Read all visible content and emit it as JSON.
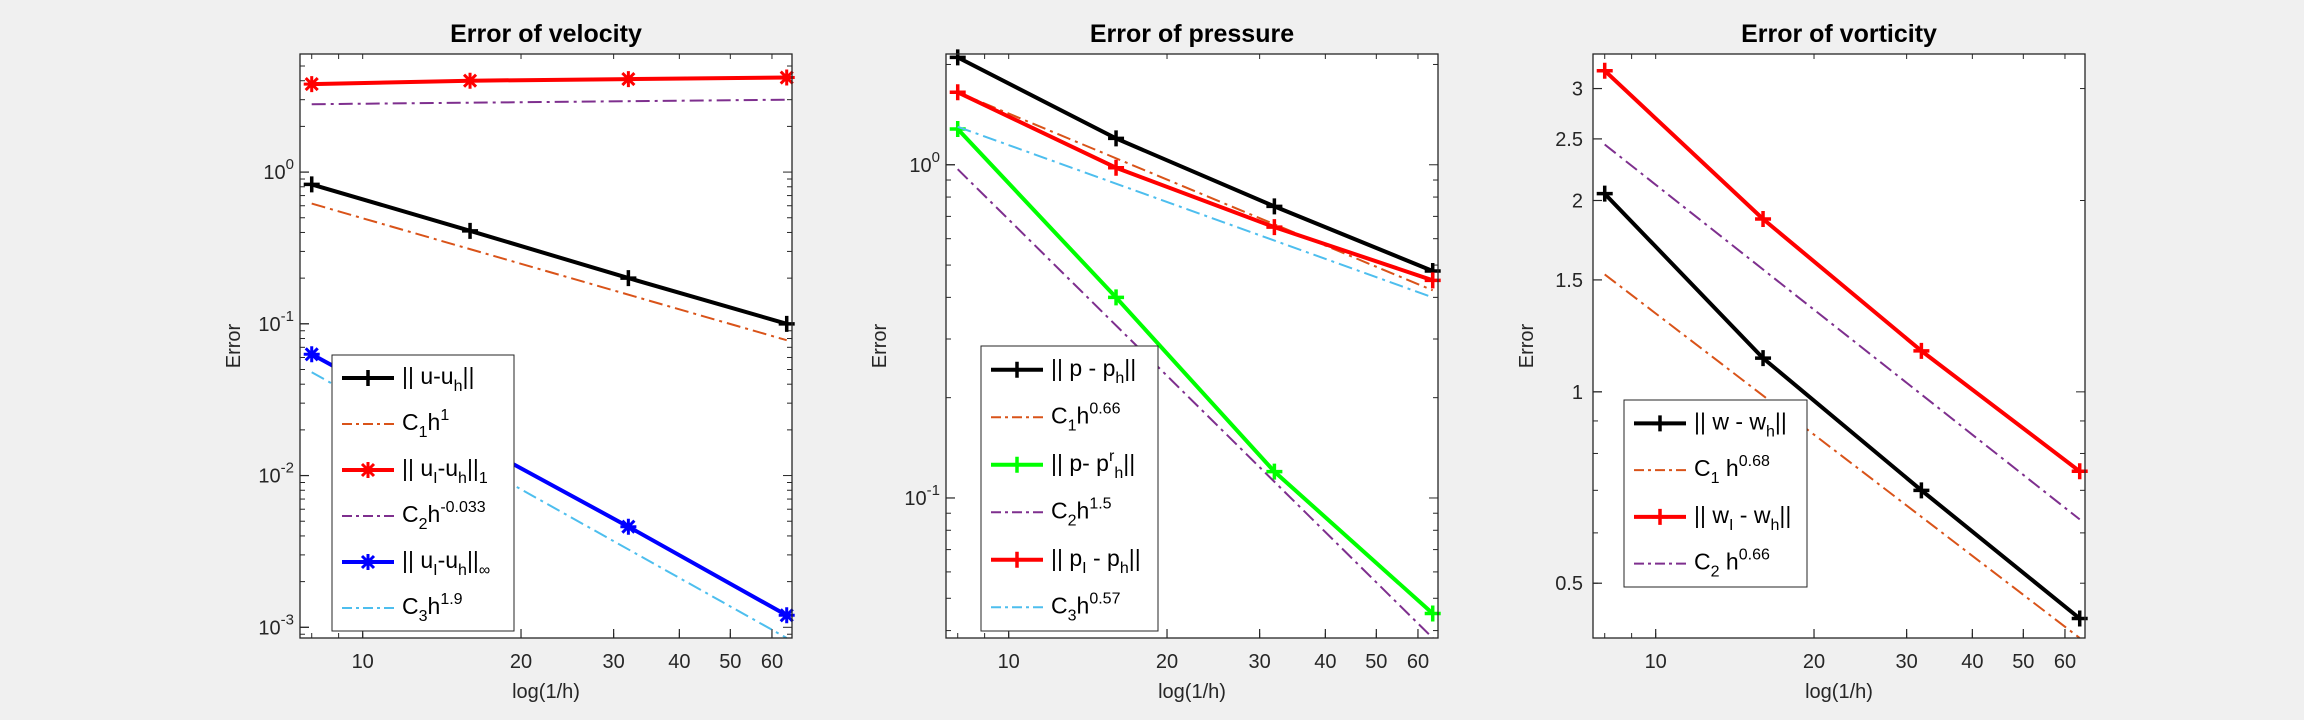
{
  "chart_data": [
    {
      "type": "line",
      "title": "Error of velocity",
      "xlabel": "log(1/h)",
      "ylabel": "Error",
      "xscale": "log",
      "yscale": "log",
      "xlim": [
        7.6,
        65.5
      ],
      "ylim": [
        0.00085,
        6.0
      ],
      "xticks": [
        10,
        20,
        30,
        40,
        50,
        60
      ],
      "yticks": [
        {
          "v": 0.001,
          "b": "10",
          "e": "-3"
        },
        {
          "v": 0.01,
          "b": "10",
          "e": "-2"
        },
        {
          "v": 0.1,
          "b": "10",
          "e": "-1"
        },
        {
          "v": 1,
          "b": "10",
          "e": "0"
        }
      ],
      "grid": false,
      "legend_position": "bottom-left",
      "series": [
        {
          "legend": [
            {
              "t": "|| u-u"
            },
            {
              "t": "h",
              "s": "sub"
            },
            {
              "t": "||"
            }
          ],
          "color": "#000000",
          "dash": "",
          "width": 4,
          "marker": "plus",
          "x": [
            8,
            16,
            32,
            64
          ],
          "y": [
            0.83,
            0.41,
            0.2,
            0.1
          ]
        },
        {
          "legend": [
            {
              "t": "C"
            },
            {
              "t": "1",
              "s": "sub"
            },
            {
              "t": "h"
            },
            {
              "t": "1",
              "s": "sup"
            }
          ],
          "color": "#D95319",
          "dash": "14 5 3 5",
          "width": 2,
          "marker": "",
          "x": [
            8,
            64
          ],
          "y": [
            0.62,
            0.078
          ]
        },
        {
          "legend": [
            {
              "t": "|| u"
            },
            {
              "t": "I",
              "s": "sub"
            },
            {
              "t": "-u"
            },
            {
              "t": "h",
              "s": "sub"
            },
            {
              "t": "||"
            },
            {
              "t": "1",
              "s": "sub"
            }
          ],
          "color": "#FF0000",
          "dash": "",
          "width": 4,
          "marker": "star",
          "x": [
            8,
            16,
            32,
            64
          ],
          "y": [
            3.8,
            4.0,
            4.1,
            4.2
          ]
        },
        {
          "legend": [
            {
              "t": "C"
            },
            {
              "t": "2",
              "s": "sub"
            },
            {
              "t": "h"
            },
            {
              "t": "-0.033",
              "s": "sup"
            }
          ],
          "color": "#7E2F8E",
          "dash": "14 5 3 5",
          "width": 2,
          "marker": "",
          "x": [
            8,
            64
          ],
          "y": [
            2.8,
            3.0
          ]
        },
        {
          "legend": [
            {
              "t": "|| u"
            },
            {
              "t": "I",
              "s": "sub"
            },
            {
              "t": "-u"
            },
            {
              "t": "h",
              "s": "sub"
            },
            {
              "t": "||"
            },
            {
              "t": "∞",
              "s": "sub"
            }
          ],
          "color": "#0000FF",
          "dash": "",
          "width": 4,
          "marker": "star",
          "x": [
            8,
            16,
            32,
            64
          ],
          "y": [
            0.063,
            0.017,
            0.0046,
            0.0012
          ]
        },
        {
          "legend": [
            {
              "t": "C"
            },
            {
              "t": "3",
              "s": "sub"
            },
            {
              "t": "h"
            },
            {
              "t": "1.9",
              "s": "sup"
            }
          ],
          "color": "#4DBEEE",
          "dash": "14 5 3 5",
          "width": 2,
          "marker": "",
          "x": [
            8,
            64
          ],
          "y": [
            0.048,
            0.00085
          ]
        }
      ]
    },
    {
      "type": "line",
      "title": "Error of pressure",
      "xlabel": "log(1/h)",
      "ylabel": "Error",
      "xscale": "log",
      "yscale": "log",
      "xlim": [
        7.6,
        65.5
      ],
      "ylim": [
        0.038,
        2.15
      ],
      "xticks": [
        10,
        20,
        30,
        40,
        50,
        60
      ],
      "yticks": [
        {
          "v": 0.1,
          "b": "10",
          "e": "-1"
        },
        {
          "v": 1,
          "b": "10",
          "e": "0"
        }
      ],
      "grid": false,
      "legend_position": "bottom-left",
      "series": [
        {
          "legend": [
            {
              "t": "|| p - p"
            },
            {
              "t": "h",
              "s": "sub"
            },
            {
              "t": "||"
            }
          ],
          "color": "#000000",
          "dash": "",
          "width": 4,
          "marker": "plus",
          "x": [
            8,
            16,
            32,
            64
          ],
          "y": [
            2.1,
            1.2,
            0.75,
            0.48
          ]
        },
        {
          "legend": [
            {
              "t": "C"
            },
            {
              "t": "1",
              "s": "sub"
            },
            {
              "t": "h"
            },
            {
              "t": "0.66",
              "s": "sup"
            }
          ],
          "color": "#D95319",
          "dash": "14 5 3 5",
          "width": 2,
          "marker": "",
          "x": [
            8,
            64
          ],
          "y": [
            1.65,
            0.42
          ]
        },
        {
          "legend": [
            {
              "t": "|| p- p"
            },
            {
              "t": "r",
              "s": "sup"
            },
            {
              "t": "h",
              "s": "sub"
            },
            {
              "t": "||"
            }
          ],
          "color": "#00FF00",
          "dash": "",
          "width": 4,
          "marker": "plus",
          "x": [
            8,
            16,
            32,
            64
          ],
          "y": [
            1.28,
            0.4,
            0.12,
            0.045
          ]
        },
        {
          "legend": [
            {
              "t": "C"
            },
            {
              "t": "2",
              "s": "sub"
            },
            {
              "t": "h"
            },
            {
              "t": "1.5",
              "s": "sup"
            }
          ],
          "color": "#7E2F8E",
          "dash": "14 5 3 5",
          "width": 2,
          "marker": "",
          "x": [
            8,
            64
          ],
          "y": [
            0.97,
            0.038
          ]
        },
        {
          "legend": [
            {
              "t": "|| p"
            },
            {
              "t": "I",
              "s": "sub"
            },
            {
              "t": " - p"
            },
            {
              "t": "h",
              "s": "sub"
            },
            {
              "t": "||"
            }
          ],
          "color": "#FF0000",
          "dash": "",
          "width": 4,
          "marker": "plus",
          "x": [
            8,
            16,
            32,
            64
          ],
          "y": [
            1.65,
            0.98,
            0.65,
            0.45
          ]
        },
        {
          "legend": [
            {
              "t": "C"
            },
            {
              "t": "3",
              "s": "sub"
            },
            {
              "t": "h"
            },
            {
              "t": "0.57",
              "s": "sup"
            }
          ],
          "color": "#4DBEEE",
          "dash": "14 5 3 5",
          "width": 2,
          "marker": "",
          "x": [
            8,
            64
          ],
          "y": [
            1.3,
            0.4
          ]
        }
      ]
    },
    {
      "type": "line",
      "title": "Error of vorticity",
      "xlabel": "log(1/h)",
      "ylabel": "Error",
      "xscale": "log",
      "yscale": "log",
      "xlim": [
        7.6,
        65.5
      ],
      "ylim": [
        0.41,
        3.4
      ],
      "xticks": [
        10,
        20,
        30,
        40,
        50,
        60
      ],
      "yticks": [
        {
          "v": 0.5,
          "l": "0.5"
        },
        {
          "v": 1,
          "l": "1"
        },
        {
          "v": 1.5,
          "l": "1.5"
        },
        {
          "v": 2,
          "l": "2"
        },
        {
          "v": 2.5,
          "l": "2.5"
        },
        {
          "v": 3,
          "l": "3"
        }
      ],
      "grid": false,
      "legend_position": "bottom-left",
      "series": [
        {
          "legend": [
            {
              "t": "|| w - w"
            },
            {
              "t": "h",
              "s": "sub"
            },
            {
              "t": "||"
            }
          ],
          "color": "#000000",
          "dash": "",
          "width": 4,
          "marker": "plus",
          "x": [
            8,
            16,
            32,
            64
          ],
          "y": [
            2.05,
            1.13,
            0.7,
            0.44
          ]
        },
        {
          "legend": [
            {
              "t": "C"
            },
            {
              "t": "1",
              "s": "sub"
            },
            {
              "t": " h"
            },
            {
              "t": "0.68",
              "s": "sup"
            }
          ],
          "color": "#D95319",
          "dash": "14 5 3 5",
          "width": 2,
          "marker": "",
          "x": [
            8,
            64
          ],
          "y": [
            1.53,
            0.41
          ]
        },
        {
          "legend": [
            {
              "t": "|| w"
            },
            {
              "t": "I",
              "s": "sub"
            },
            {
              "t": " - w"
            },
            {
              "t": "h",
              "s": "sub"
            },
            {
              "t": "||"
            }
          ],
          "color": "#FF0000",
          "dash": "",
          "width": 4,
          "marker": "plus",
          "x": [
            8,
            16,
            32,
            64
          ],
          "y": [
            3.2,
            1.87,
            1.16,
            0.75
          ]
        },
        {
          "legend": [
            {
              "t": "C"
            },
            {
              "t": "2",
              "s": "sub"
            },
            {
              "t": " h"
            },
            {
              "t": "0.66",
              "s": "sup"
            }
          ],
          "color": "#7E2F8E",
          "dash": "14 5 3 5",
          "width": 2,
          "marker": "",
          "x": [
            8,
            64
          ],
          "y": [
            2.45,
            0.63
          ]
        }
      ]
    }
  ]
}
